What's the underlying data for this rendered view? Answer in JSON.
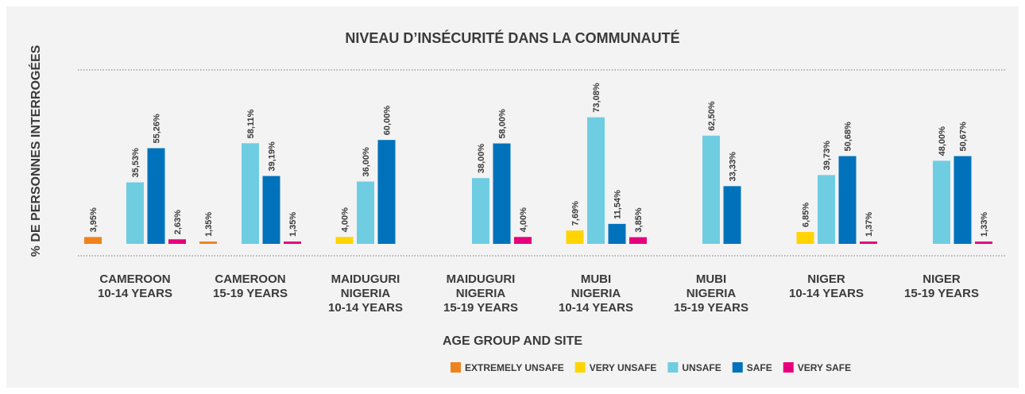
{
  "chart_data": {
    "type": "bar",
    "title": "NIVEAU D’INSÉCURITÉ DANS LA COMMUNAUTÉ",
    "y_label": "% DE PERSONNES INTERROGÉES",
    "x_label": "AGE GROUP AND SITE",
    "categories": [
      [
        "CAMEROON",
        "10-14 YEARS"
      ],
      [
        "CAMEROON",
        "15-19 YEARS"
      ],
      [
        "MAIDUGURI",
        "NIGERIA",
        "10-14 YEARS"
      ],
      [
        "MAIDUGURI",
        "NIGERIA",
        "15-19 YEARS"
      ],
      [
        "MUBI",
        "NIGERIA",
        "10-14 YEARS"
      ],
      [
        "MUBI",
        "NIGERIA",
        "15-19 YEARS"
      ],
      [
        "NIGER",
        "10-14 YEARS"
      ],
      [
        "NIGER",
        "15-19 YEARS"
      ]
    ],
    "ylim": [
      0,
      100
    ],
    "series": [
      {
        "name": "EXTREMELY UNSAFE",
        "color": "#f0821e",
        "values": [
          3.95,
          1.35,
          null,
          null,
          null,
          null,
          null,
          null
        ],
        "value_labels": [
          "3,95%",
          "1,35%",
          null,
          null,
          null,
          null,
          null,
          null
        ]
      },
      {
        "name": "VERY UNSAFE",
        "color": "#ffd400",
        "values": [
          null,
          null,
          4.0,
          null,
          7.69,
          null,
          6.85,
          null
        ],
        "value_labels": [
          null,
          null,
          "4,00%",
          null,
          "7,69%",
          null,
          "6,85%",
          null
        ]
      },
      {
        "name": "UNSAFE",
        "color": "#6fcde2",
        "values": [
          35.53,
          58.11,
          36.0,
          38.0,
          73.08,
          62.5,
          39.73,
          48.0
        ],
        "value_labels": [
          "35,53%",
          "58,11%",
          "36,00%",
          "38,00%",
          "73,08%",
          "62,50%",
          "39,73%",
          "48,00%"
        ]
      },
      {
        "name": "SAFE",
        "color": "#0072bc",
        "values": [
          55.26,
          39.19,
          60.0,
          58.0,
          11.54,
          33.33,
          50.68,
          50.67
        ],
        "value_labels": [
          "55,26%",
          "39,19%",
          "60,00%",
          "58,00%",
          "11,54%",
          "33,33%",
          "50,68%",
          "50,67%"
        ]
      },
      {
        "name": "VERY SAFE",
        "color": "#e6007e",
        "values": [
          2.63,
          1.35,
          null,
          4.0,
          3.85,
          null,
          1.37,
          1.33
        ],
        "value_labels": [
          "2,63%",
          "1,35%",
          null,
          "4,00%",
          "3,85%",
          null,
          "1,37%",
          "1,33%"
        ]
      }
    ]
  }
}
